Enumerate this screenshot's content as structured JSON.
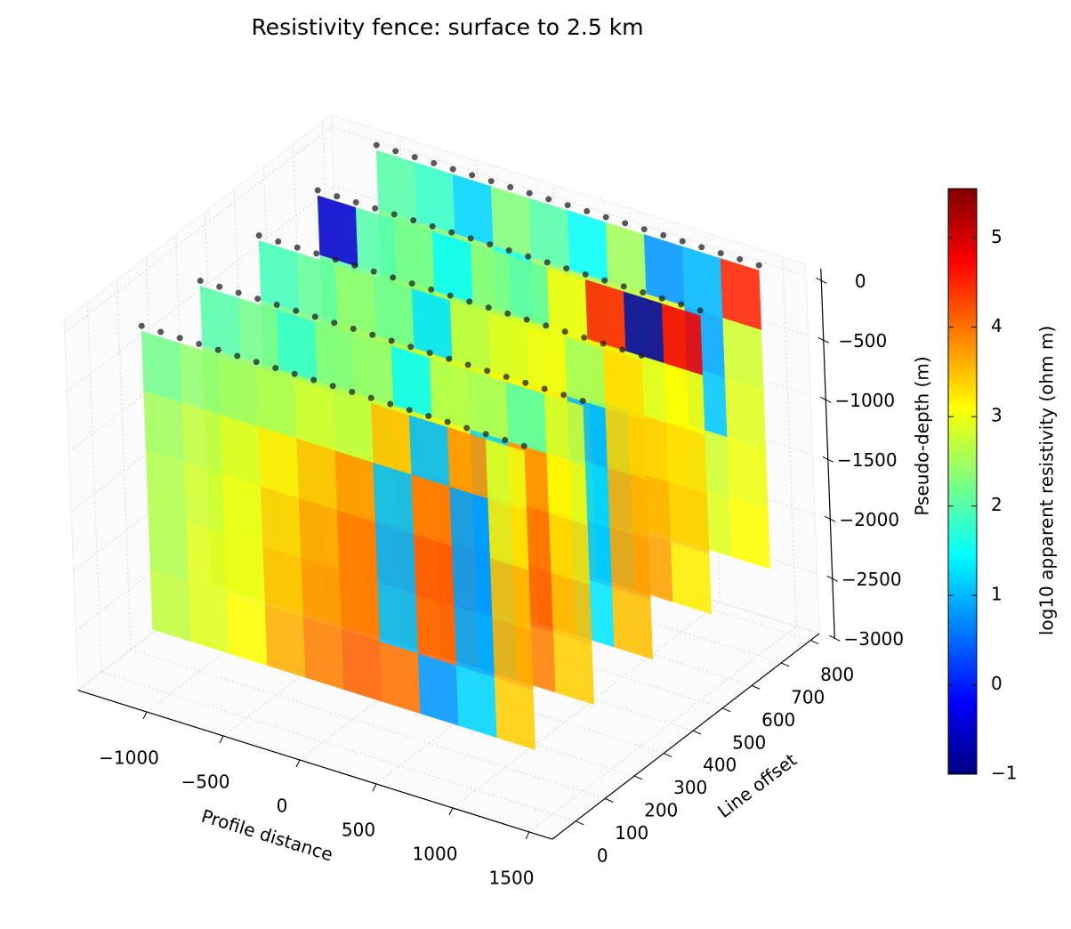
{
  "chart_data": {
    "type": "fence3d",
    "title": "Resistivity fence: surface to 2.5 km",
    "x_label": "Profile distance",
    "y_label": "Line offset",
    "z_label": "Pseudo-depth (m)",
    "colorbar_label": "log10 apparent resistivity (ohm m)",
    "colormap": "jet",
    "clim": [
      -1,
      5.55
    ],
    "cticks": [
      {
        "value": -1,
        "label": "−1"
      },
      0,
      1,
      2,
      3,
      4,
      5
    ],
    "xlim": [
      -1450,
      1650
    ],
    "ylim": [
      -80,
      830
    ],
    "zlim": [
      -3000,
      100
    ],
    "xticks": [
      {
        "value": -1000,
        "label": "−1000"
      },
      {
        "value": -500,
        "label": "−500"
      },
      0,
      500,
      1000,
      1500
    ],
    "yticks": [
      0,
      100,
      200,
      300,
      400,
      500,
      600,
      700,
      800
    ],
    "zticks": [
      0,
      {
        "value": -500,
        "label": "−500"
      },
      {
        "value": -1000,
        "label": "−1000"
      },
      {
        "value": -1500,
        "label": "−1500"
      },
      {
        "value": -2000,
        "label": "−2000"
      },
      {
        "value": -2500,
        "label": "−2500"
      },
      {
        "value": -3000,
        "label": "−3000"
      }
    ],
    "grid": true,
    "cell_width": 250,
    "cell_height": 500,
    "panels": [
      {
        "offset": 0,
        "x": [
          -1100,
          -850,
          -600,
          -350,
          -100,
          150,
          400,
          650,
          900,
          1150
        ],
        "depths": [
          0,
          -500,
          -1000,
          -1500,
          -2000
        ],
        "values": [
          [
            2.2,
            2.4,
            2.5,
            2.6,
            2.8,
            2.7,
            3.5,
            1.0,
            3.8,
            3.0
          ],
          [
            2.5,
            2.7,
            2.9,
            3.2,
            3.5,
            3.8,
            1.0,
            4.0,
            0.8,
            3.2
          ],
          [
            2.6,
            2.8,
            3.0,
            3.4,
            3.7,
            4.0,
            0.9,
            4.2,
            0.8,
            3.5
          ],
          [
            2.6,
            2.9,
            3.0,
            3.5,
            3.8,
            4.0,
            1.0,
            4.1,
            0.9,
            3.6
          ],
          [
            2.7,
            2.9,
            3.1,
            3.6,
            3.9,
            4.1,
            4.0,
            0.8,
            1.2,
            3.4
          ]
        ]
      },
      {
        "offset": 200,
        "x": [
          -1100,
          -850,
          -600,
          -350,
          -100,
          150,
          400,
          650,
          900,
          1150
        ],
        "depths": [
          0,
          -500,
          -1000,
          -1500,
          -2000
        ],
        "values": [
          [
            2.0,
            2.2,
            1.8,
            2.3,
            2.4,
            1.5,
            2.6,
            2.5,
            2.0,
            2.8
          ],
          [
            2.3,
            2.4,
            2.5,
            2.6,
            2.7,
            2.9,
            3.0,
            1.2,
            3.8,
            3.1
          ],
          [
            2.5,
            2.6,
            2.8,
            3.0,
            3.1,
            3.3,
            3.5,
            1.0,
            4.0,
            3.3
          ],
          [
            2.6,
            2.7,
            2.9,
            3.1,
            3.3,
            3.5,
            3.8,
            0.9,
            4.1,
            3.5
          ],
          [
            2.7,
            2.8,
            3.0,
            3.2,
            3.4,
            3.6,
            3.9,
            1.1,
            3.9,
            3.4
          ]
        ]
      },
      {
        "offset": 400,
        "x": [
          -1100,
          -850,
          -600,
          -350,
          -100,
          150,
          400,
          650,
          900,
          1150
        ],
        "depths": [
          0,
          -500,
          -1000,
          -1500,
          -2000
        ],
        "values": [
          [
            1.9,
            2.1,
            2.4,
            2.2,
            1.3,
            2.7,
            2.9,
            3.0,
            2.5,
            3.3
          ],
          [
            2.2,
            2.3,
            2.5,
            2.6,
            2.8,
            2.9,
            3.1,
            3.2,
            1.0,
            3.4
          ],
          [
            2.4,
            2.5,
            2.7,
            2.8,
            2.9,
            3.1,
            3.3,
            3.5,
            1.2,
            3.6
          ],
          [
            2.5,
            2.6,
            2.8,
            2.9,
            3.0,
            3.2,
            3.4,
            3.8,
            1.1,
            3.7
          ],
          [
            2.6,
            2.7,
            2.9,
            3.0,
            3.1,
            3.3,
            3.5,
            3.9,
            1.3,
            3.5
          ]
        ]
      },
      {
        "offset": 600,
        "x": [
          -1100,
          -850,
          -600,
          -350,
          -100,
          150,
          400,
          650,
          900,
          1150
        ],
        "depths": [
          0,
          -500,
          -1000,
          -1500,
          -2000
        ],
        "values": [
          [
            -0.5,
            2.0,
            2.2,
            1.5,
            2.3,
            2.1,
            3.0,
            4.5,
            -0.8,
            4.8
          ],
          [
            2.1,
            2.2,
            2.4,
            2.5,
            2.6,
            2.8,
            3.0,
            3.2,
            2.9,
            3.1
          ],
          [
            2.3,
            2.4,
            2.6,
            2.7,
            2.8,
            3.0,
            3.2,
            1.2,
            3.4,
            3.3
          ],
          [
            2.4,
            2.5,
            2.7,
            2.8,
            2.9,
            3.1,
            3.3,
            1.0,
            3.6,
            3.4
          ],
          [
            2.5,
            2.6,
            2.8,
            2.9,
            3.0,
            3.2,
            3.4,
            1.3,
            3.7,
            3.2
          ]
        ]
      },
      {
        "offset": 800,
        "x": [
          -1100,
          -850,
          -600,
          -350,
          -100,
          150,
          400,
          650,
          900,
          1150
        ],
        "depths": [
          0,
          -500,
          -1000,
          -1500,
          -2000
        ],
        "values": [
          [
            2.0,
            1.8,
            1.2,
            2.3,
            2.0,
            1.5,
            2.5,
            0.8,
            1.0,
            4.5
          ],
          [
            2.2,
            2.3,
            2.4,
            1.6,
            2.5,
            2.6,
            2.7,
            2.9,
            0.9,
            2.8
          ],
          [
            2.3,
            2.4,
            2.5,
            2.6,
            2.7,
            2.8,
            2.9,
            3.0,
            1.1,
            2.9
          ],
          [
            2.4,
            2.5,
            2.6,
            2.7,
            2.8,
            2.9,
            3.0,
            3.1,
            2.8,
            3.0
          ],
          [
            2.5,
            2.6,
            2.7,
            2.8,
            2.9,
            3.0,
            3.1,
            3.2,
            2.9,
            3.1
          ]
        ]
      }
    ]
  }
}
